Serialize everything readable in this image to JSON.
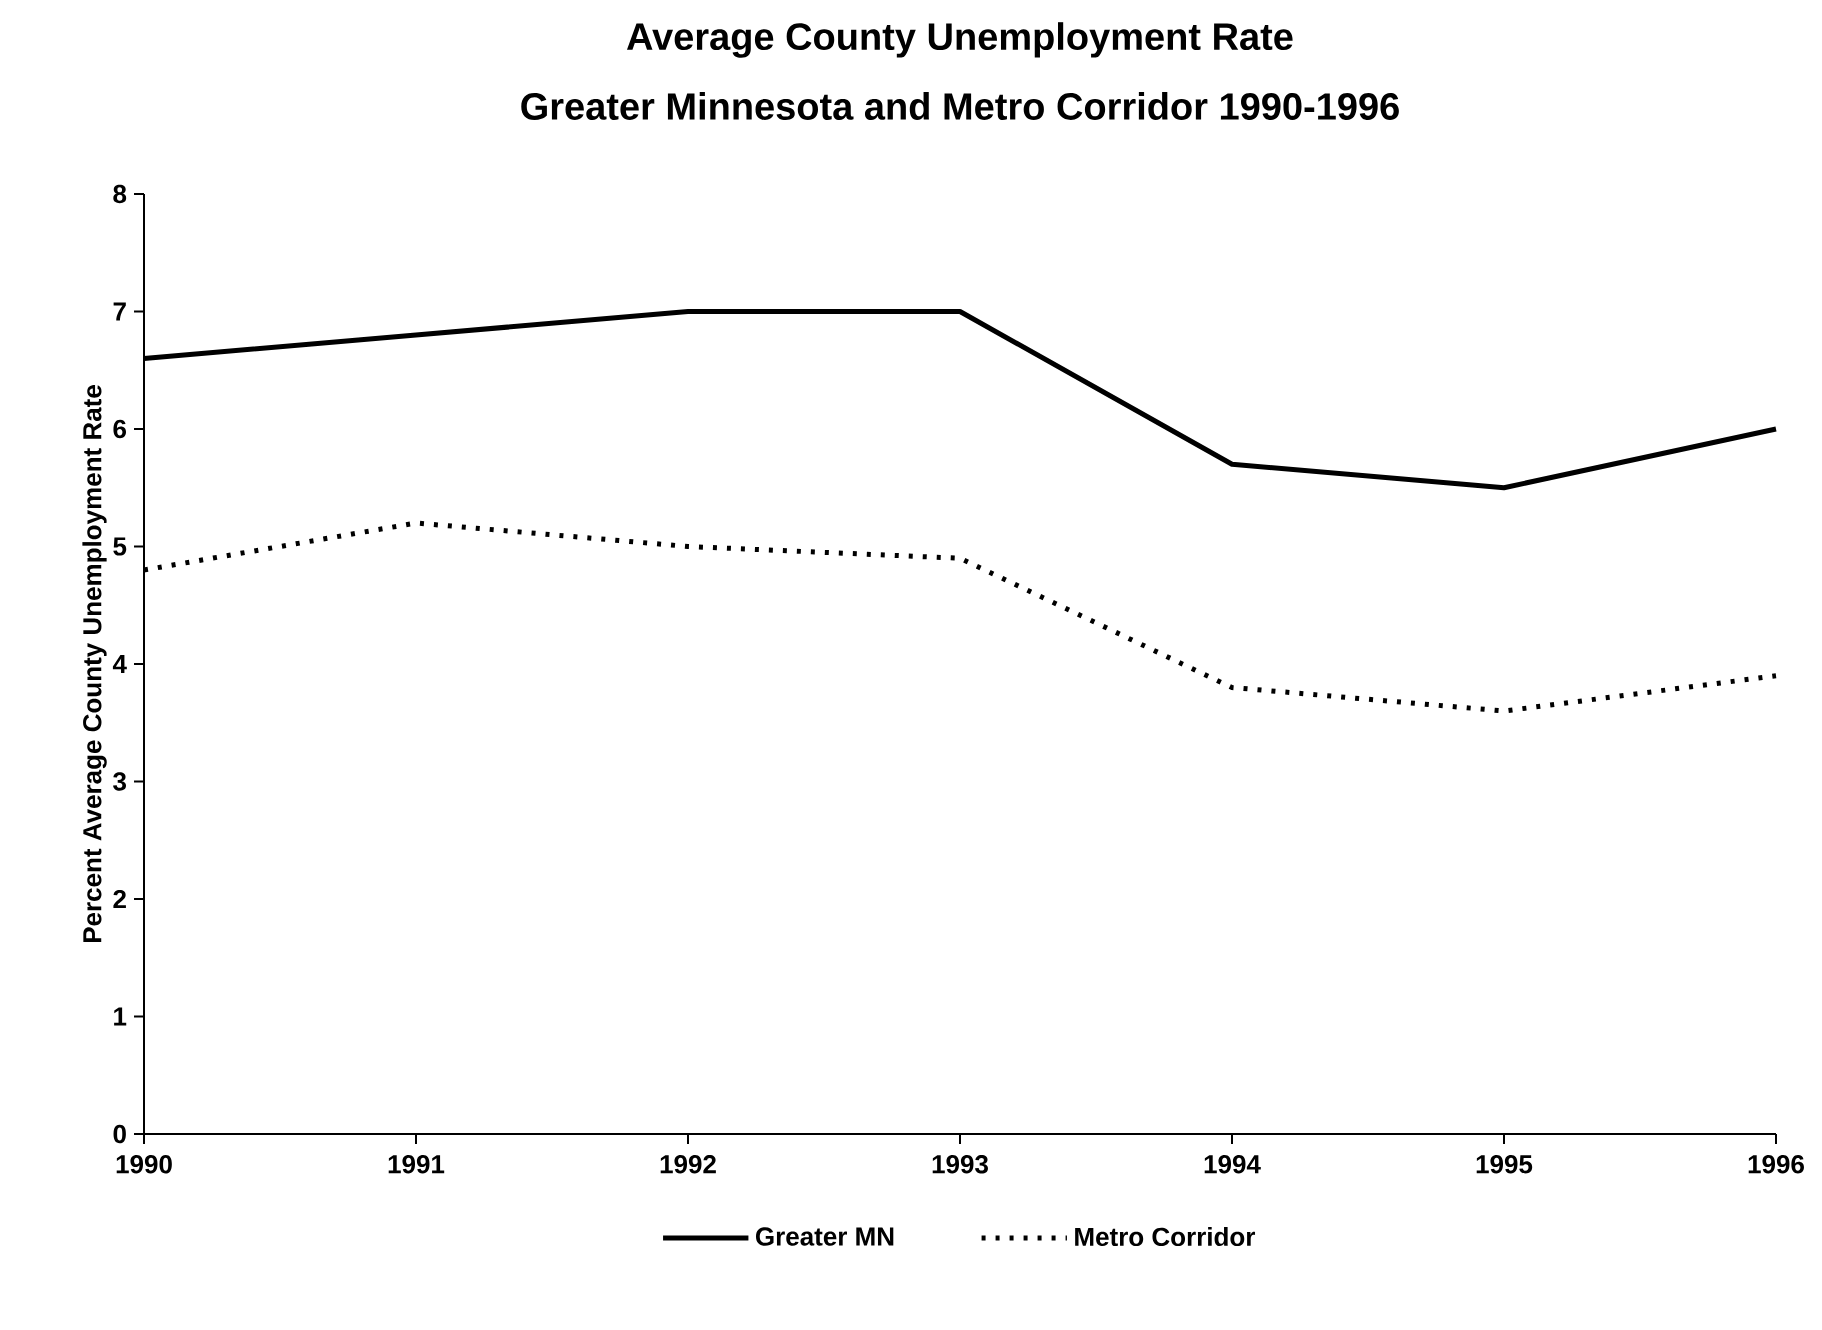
{
  "chart_data": {
    "type": "line",
    "title": "Average County Unemployment Rate",
    "subtitle": "Greater Minnesota and Metro Corridor 1990-1996",
    "ylabel": "Percent Average County Unemployment Rate",
    "x": [
      1990,
      1991,
      1992,
      1993,
      1994,
      1995,
      1996
    ],
    "xlim": [
      1990,
      1996
    ],
    "xticks": [
      1990,
      1991,
      1992,
      1993,
      1994,
      1995,
      1996
    ],
    "ylim": [
      0,
      8
    ],
    "yticks": [
      0,
      1,
      2,
      3,
      4,
      5,
      6,
      7,
      8
    ],
    "legend": "bottom",
    "series": [
      {
        "name": "Greater MN",
        "color": "#000000",
        "line_style": "solid",
        "values": [
          6.6,
          6.8,
          7.0,
          7.0,
          5.7,
          5.5,
          6.0
        ]
      },
      {
        "name": "Metro Corridor",
        "color": "#000000",
        "line_style": "dotted",
        "values": [
          4.8,
          5.2,
          5.0,
          4.9,
          3.8,
          3.6,
          3.9
        ]
      }
    ]
  }
}
